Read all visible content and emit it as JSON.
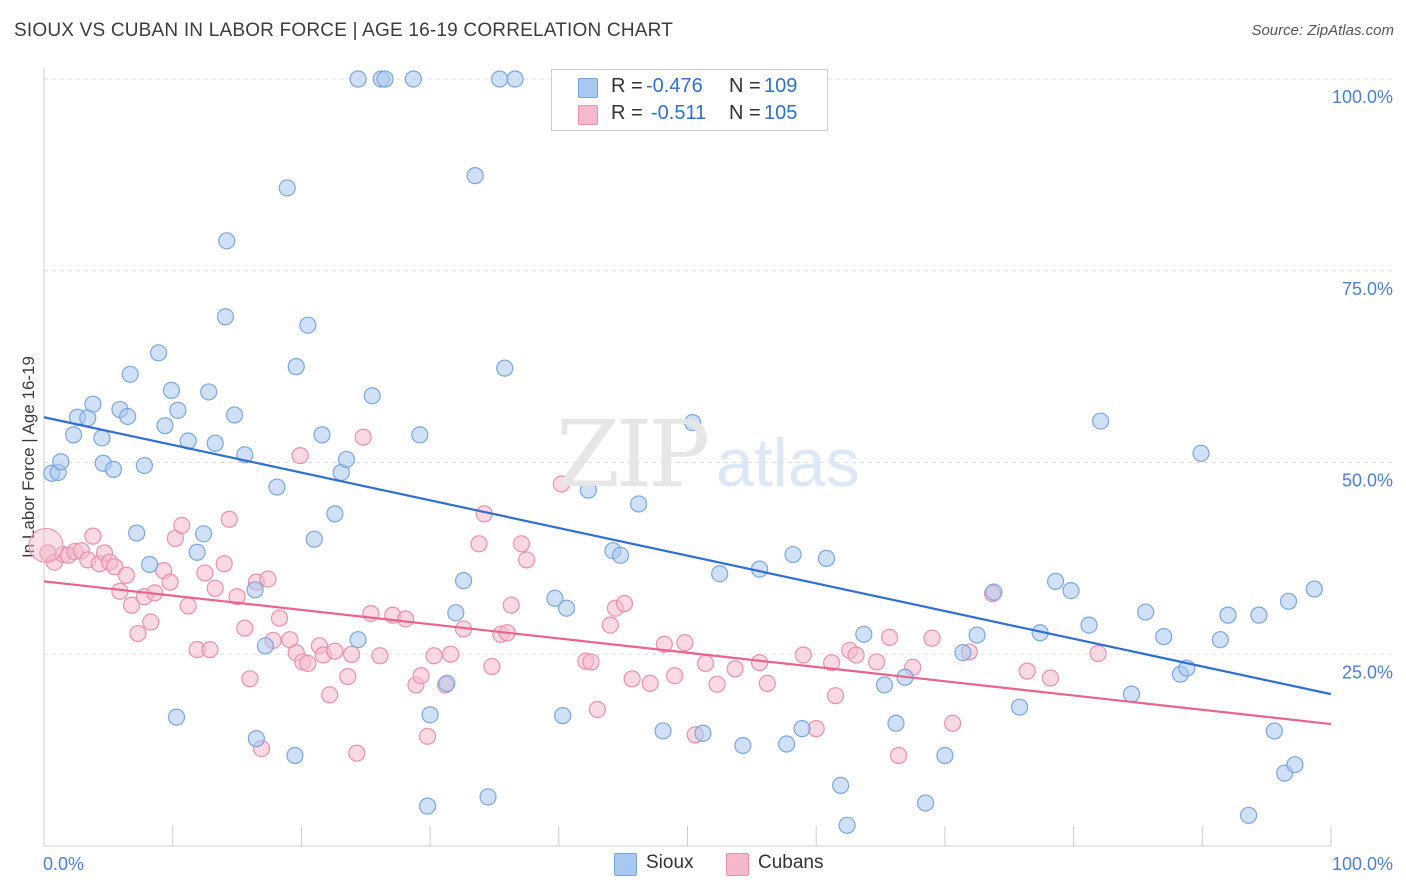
{
  "title": "SIOUX VS CUBAN IN LABOR FORCE | AGE 16-19 CORRELATION CHART",
  "source": "Source: ZipAtlas.com",
  "watermark": {
    "zip": "ZIP",
    "atlas": "atlas"
  },
  "legend": {
    "r_label": "R =",
    "n_label": "N =",
    "sioux": {
      "r": "-0.476",
      "n": "109"
    },
    "cubans": {
      "r": "-0.511",
      "n": "105"
    }
  },
  "bottom_legend": {
    "sioux": "Sioux",
    "cubans": "Cubans"
  },
  "colors": {
    "sioux_fill": "#a9c8f0",
    "sioux_stroke": "#7aa6e0",
    "sioux_line": "#2f6fd0",
    "cubans_fill": "#f5b9cb",
    "cubans_stroke": "#ec8fab",
    "cubans_line": "#e8648e",
    "tick_label": "#4a7fd4",
    "grid": "#dddddd"
  },
  "chart_data": {
    "type": "scatter",
    "title": "SIOUX VS CUBAN IN LABOR FORCE | AGE 16-19 CORRELATION CHART",
    "xlabel": "",
    "ylabel": "In Labor Force | Age 16-19",
    "xlim": [
      0,
      100
    ],
    "ylim": [
      0,
      100
    ],
    "x_tick_labels": [
      "0.0%",
      "100.0%"
    ],
    "y_ticks": [
      25,
      50,
      75,
      100
    ],
    "y_tick_labels": [
      "25.0%",
      "50.0%",
      "75.0%",
      "100.0%"
    ],
    "series": [
      {
        "name": "Sioux",
        "r": -0.476,
        "n": 109,
        "trend": {
          "x": [
            0,
            100
          ],
          "y": [
            55.9,
            19.8
          ]
        },
        "points": [
          [
            0.6,
            48.6
          ],
          [
            1.1,
            48.7
          ],
          [
            1.3,
            50.1
          ],
          [
            2.3,
            53.6
          ],
          [
            2.6,
            55.9
          ],
          [
            3.4,
            55.8
          ],
          [
            3.8,
            57.6
          ],
          [
            4.5,
            53.2
          ],
          [
            4.6,
            49.9
          ],
          [
            5.4,
            49.1
          ],
          [
            5.9,
            56.9
          ],
          [
            6.5,
            56.0
          ],
          [
            6.7,
            61.5
          ],
          [
            7.2,
            40.8
          ],
          [
            7.8,
            49.6
          ],
          [
            8.2,
            36.7
          ],
          [
            8.9,
            64.3
          ],
          [
            9.4,
            54.8
          ],
          [
            9.9,
            59.4
          ],
          [
            10.4,
            56.8
          ],
          [
            11.2,
            52.8
          ],
          [
            11.9,
            38.3
          ],
          [
            12.4,
            40.7
          ],
          [
            12.8,
            59.2
          ],
          [
            13.3,
            52.5
          ],
          [
            14.1,
            69.0
          ],
          [
            14.2,
            78.9
          ],
          [
            14.8,
            56.2
          ],
          [
            15.6,
            51.0
          ],
          [
            16.4,
            33.4
          ],
          [
            17.2,
            26.1
          ],
          [
            18.1,
            46.8
          ],
          [
            18.9,
            85.8
          ],
          [
            19.6,
            62.5
          ],
          [
            20.5,
            67.9
          ],
          [
            21.0,
            40.0
          ],
          [
            21.6,
            53.6
          ],
          [
            22.6,
            43.3
          ],
          [
            23.1,
            48.7
          ],
          [
            23.5,
            50.4
          ],
          [
            24.4,
            26.9
          ],
          [
            25.5,
            58.7
          ],
          [
            26.2,
            100.0
          ],
          [
            26.5,
            100.0
          ],
          [
            28.7,
            100.0
          ],
          [
            29.2,
            53.6
          ],
          [
            30.0,
            17.1
          ],
          [
            31.3,
            21.2
          ],
          [
            32.6,
            34.6
          ],
          [
            33.5,
            87.4
          ],
          [
            34.5,
            6.4
          ],
          [
            35.4,
            100.0
          ],
          [
            35.8,
            62.3
          ],
          [
            36.6,
            100.0
          ],
          [
            40.3,
            17.0
          ],
          [
            42.3,
            46.4
          ],
          [
            44.2,
            38.5
          ],
          [
            44.8,
            37.9
          ],
          [
            46.2,
            44.6
          ],
          [
            48.1,
            15.0
          ],
          [
            50.4,
            55.2
          ],
          [
            51.2,
            14.7
          ],
          [
            52.5,
            35.5
          ],
          [
            54.3,
            13.1
          ],
          [
            55.6,
            36.1
          ],
          [
            57.7,
            13.3
          ],
          [
            58.9,
            15.3
          ],
          [
            60.8,
            37.5
          ],
          [
            61.9,
            7.9
          ],
          [
            62.4,
            2.7
          ],
          [
            63.7,
            27.6
          ],
          [
            65.3,
            21.0
          ],
          [
            66.2,
            16.0
          ],
          [
            66.9,
            22.0
          ],
          [
            68.5,
            5.6
          ],
          [
            70.0,
            11.8
          ],
          [
            71.4,
            25.2
          ],
          [
            72.5,
            27.5
          ],
          [
            73.8,
            33.1
          ],
          [
            75.8,
            18.1
          ],
          [
            77.4,
            27.8
          ],
          [
            78.6,
            34.5
          ],
          [
            79.8,
            33.3
          ],
          [
            81.2,
            28.8
          ],
          [
            82.1,
            55.4
          ],
          [
            84.5,
            19.8
          ],
          [
            85.6,
            30.5
          ],
          [
            87.0,
            27.3
          ],
          [
            88.3,
            22.4
          ],
          [
            88.8,
            23.2
          ],
          [
            89.9,
            51.2
          ],
          [
            91.4,
            26.9
          ],
          [
            92.0,
            30.1
          ],
          [
            93.6,
            4.0
          ],
          [
            94.4,
            30.1
          ],
          [
            95.6,
            15.0
          ],
          [
            96.4,
            9.5
          ],
          [
            96.7,
            31.9
          ],
          [
            97.2,
            10.6
          ],
          [
            98.7,
            33.5
          ],
          [
            10.3,
            16.8
          ],
          [
            16.5,
            14.0
          ],
          [
            19.5,
            11.8
          ],
          [
            24.4,
            100.0
          ],
          [
            29.8,
            5.2
          ],
          [
            32.0,
            30.4
          ],
          [
            39.7,
            32.3
          ],
          [
            40.6,
            31.0
          ],
          [
            58.2,
            38.0
          ]
        ]
      },
      {
        "name": "Cubans",
        "r": -0.511,
        "n": 105,
        "trend": {
          "x": [
            0,
            100
          ],
          "y": [
            34.5,
            15.9
          ]
        },
        "points": [
          [
            0.3,
            38.2
          ],
          [
            0.8,
            37.0
          ],
          [
            1.5,
            38.0
          ],
          [
            1.9,
            37.9
          ],
          [
            2.4,
            38.4
          ],
          [
            2.9,
            38.5
          ],
          [
            3.4,
            37.3
          ],
          [
            3.8,
            40.4
          ],
          [
            4.3,
            36.8
          ],
          [
            4.7,
            38.2
          ],
          [
            5.1,
            37.0
          ],
          [
            5.5,
            36.4
          ],
          [
            5.9,
            33.2
          ],
          [
            6.4,
            35.3
          ],
          [
            6.8,
            31.4
          ],
          [
            7.3,
            27.7
          ],
          [
            7.8,
            32.5
          ],
          [
            8.3,
            29.2
          ],
          [
            8.6,
            33.0
          ],
          [
            9.3,
            35.9
          ],
          [
            9.8,
            34.4
          ],
          [
            10.2,
            40.1
          ],
          [
            10.7,
            41.8
          ],
          [
            11.2,
            31.3
          ],
          [
            11.9,
            25.6
          ],
          [
            12.5,
            35.6
          ],
          [
            12.9,
            25.6
          ],
          [
            13.3,
            33.6
          ],
          [
            14.0,
            36.8
          ],
          [
            14.4,
            42.6
          ],
          [
            15.0,
            32.5
          ],
          [
            15.6,
            28.4
          ],
          [
            16.0,
            21.8
          ],
          [
            16.5,
            34.4
          ],
          [
            16.9,
            12.7
          ],
          [
            17.4,
            34.8
          ],
          [
            17.8,
            26.8
          ],
          [
            18.3,
            29.7
          ],
          [
            19.1,
            26.9
          ],
          [
            19.6,
            25.2
          ],
          [
            19.9,
            50.9
          ],
          [
            20.1,
            24.0
          ],
          [
            20.5,
            23.8
          ],
          [
            21.4,
            26.1
          ],
          [
            21.7,
            24.9
          ],
          [
            22.2,
            19.7
          ],
          [
            22.6,
            25.4
          ],
          [
            23.6,
            22.1
          ],
          [
            23.9,
            25.0
          ],
          [
            24.3,
            12.1
          ],
          [
            24.8,
            53.3
          ],
          [
            25.4,
            30.3
          ],
          [
            26.1,
            24.8
          ],
          [
            27.1,
            30.1
          ],
          [
            28.1,
            29.6
          ],
          [
            28.9,
            21.0
          ],
          [
            29.3,
            22.2
          ],
          [
            29.8,
            14.3
          ],
          [
            30.3,
            24.8
          ],
          [
            31.2,
            21.0
          ],
          [
            31.6,
            25.0
          ],
          [
            32.6,
            28.3
          ],
          [
            33.8,
            39.4
          ],
          [
            34.2,
            43.3
          ],
          [
            34.8,
            23.4
          ],
          [
            35.5,
            27.6
          ],
          [
            36.0,
            27.8
          ],
          [
            36.3,
            31.4
          ],
          [
            37.1,
            39.4
          ],
          [
            37.5,
            37.3
          ],
          [
            40.2,
            47.2
          ],
          [
            42.1,
            24.1
          ],
          [
            42.5,
            24.0
          ],
          [
            44.0,
            28.8
          ],
          [
            43.0,
            17.8
          ],
          [
            44.4,
            31.0
          ],
          [
            45.1,
            31.6
          ],
          [
            45.7,
            21.8
          ],
          [
            47.1,
            21.2
          ],
          [
            48.2,
            26.3
          ],
          [
            49.0,
            22.2
          ],
          [
            49.8,
            26.5
          ],
          [
            50.6,
            14.5
          ],
          [
            51.4,
            23.8
          ],
          [
            52.3,
            21.1
          ],
          [
            53.7,
            23.1
          ],
          [
            55.6,
            23.9
          ],
          [
            56.2,
            21.2
          ],
          [
            59.0,
            24.9
          ],
          [
            60.0,
            15.3
          ],
          [
            61.2,
            23.9
          ],
          [
            62.6,
            25.5
          ],
          [
            63.1,
            24.9
          ],
          [
            64.7,
            24.0
          ],
          [
            65.7,
            27.2
          ],
          [
            66.4,
            11.8
          ],
          [
            67.5,
            23.3
          ],
          [
            69.0,
            27.1
          ],
          [
            70.6,
            16.0
          ],
          [
            71.9,
            25.3
          ],
          [
            73.7,
            32.9
          ],
          [
            76.4,
            22.8
          ],
          [
            78.2,
            21.9
          ],
          [
            61.5,
            19.6
          ],
          [
            81.9,
            25.1
          ]
        ]
      }
    ]
  }
}
